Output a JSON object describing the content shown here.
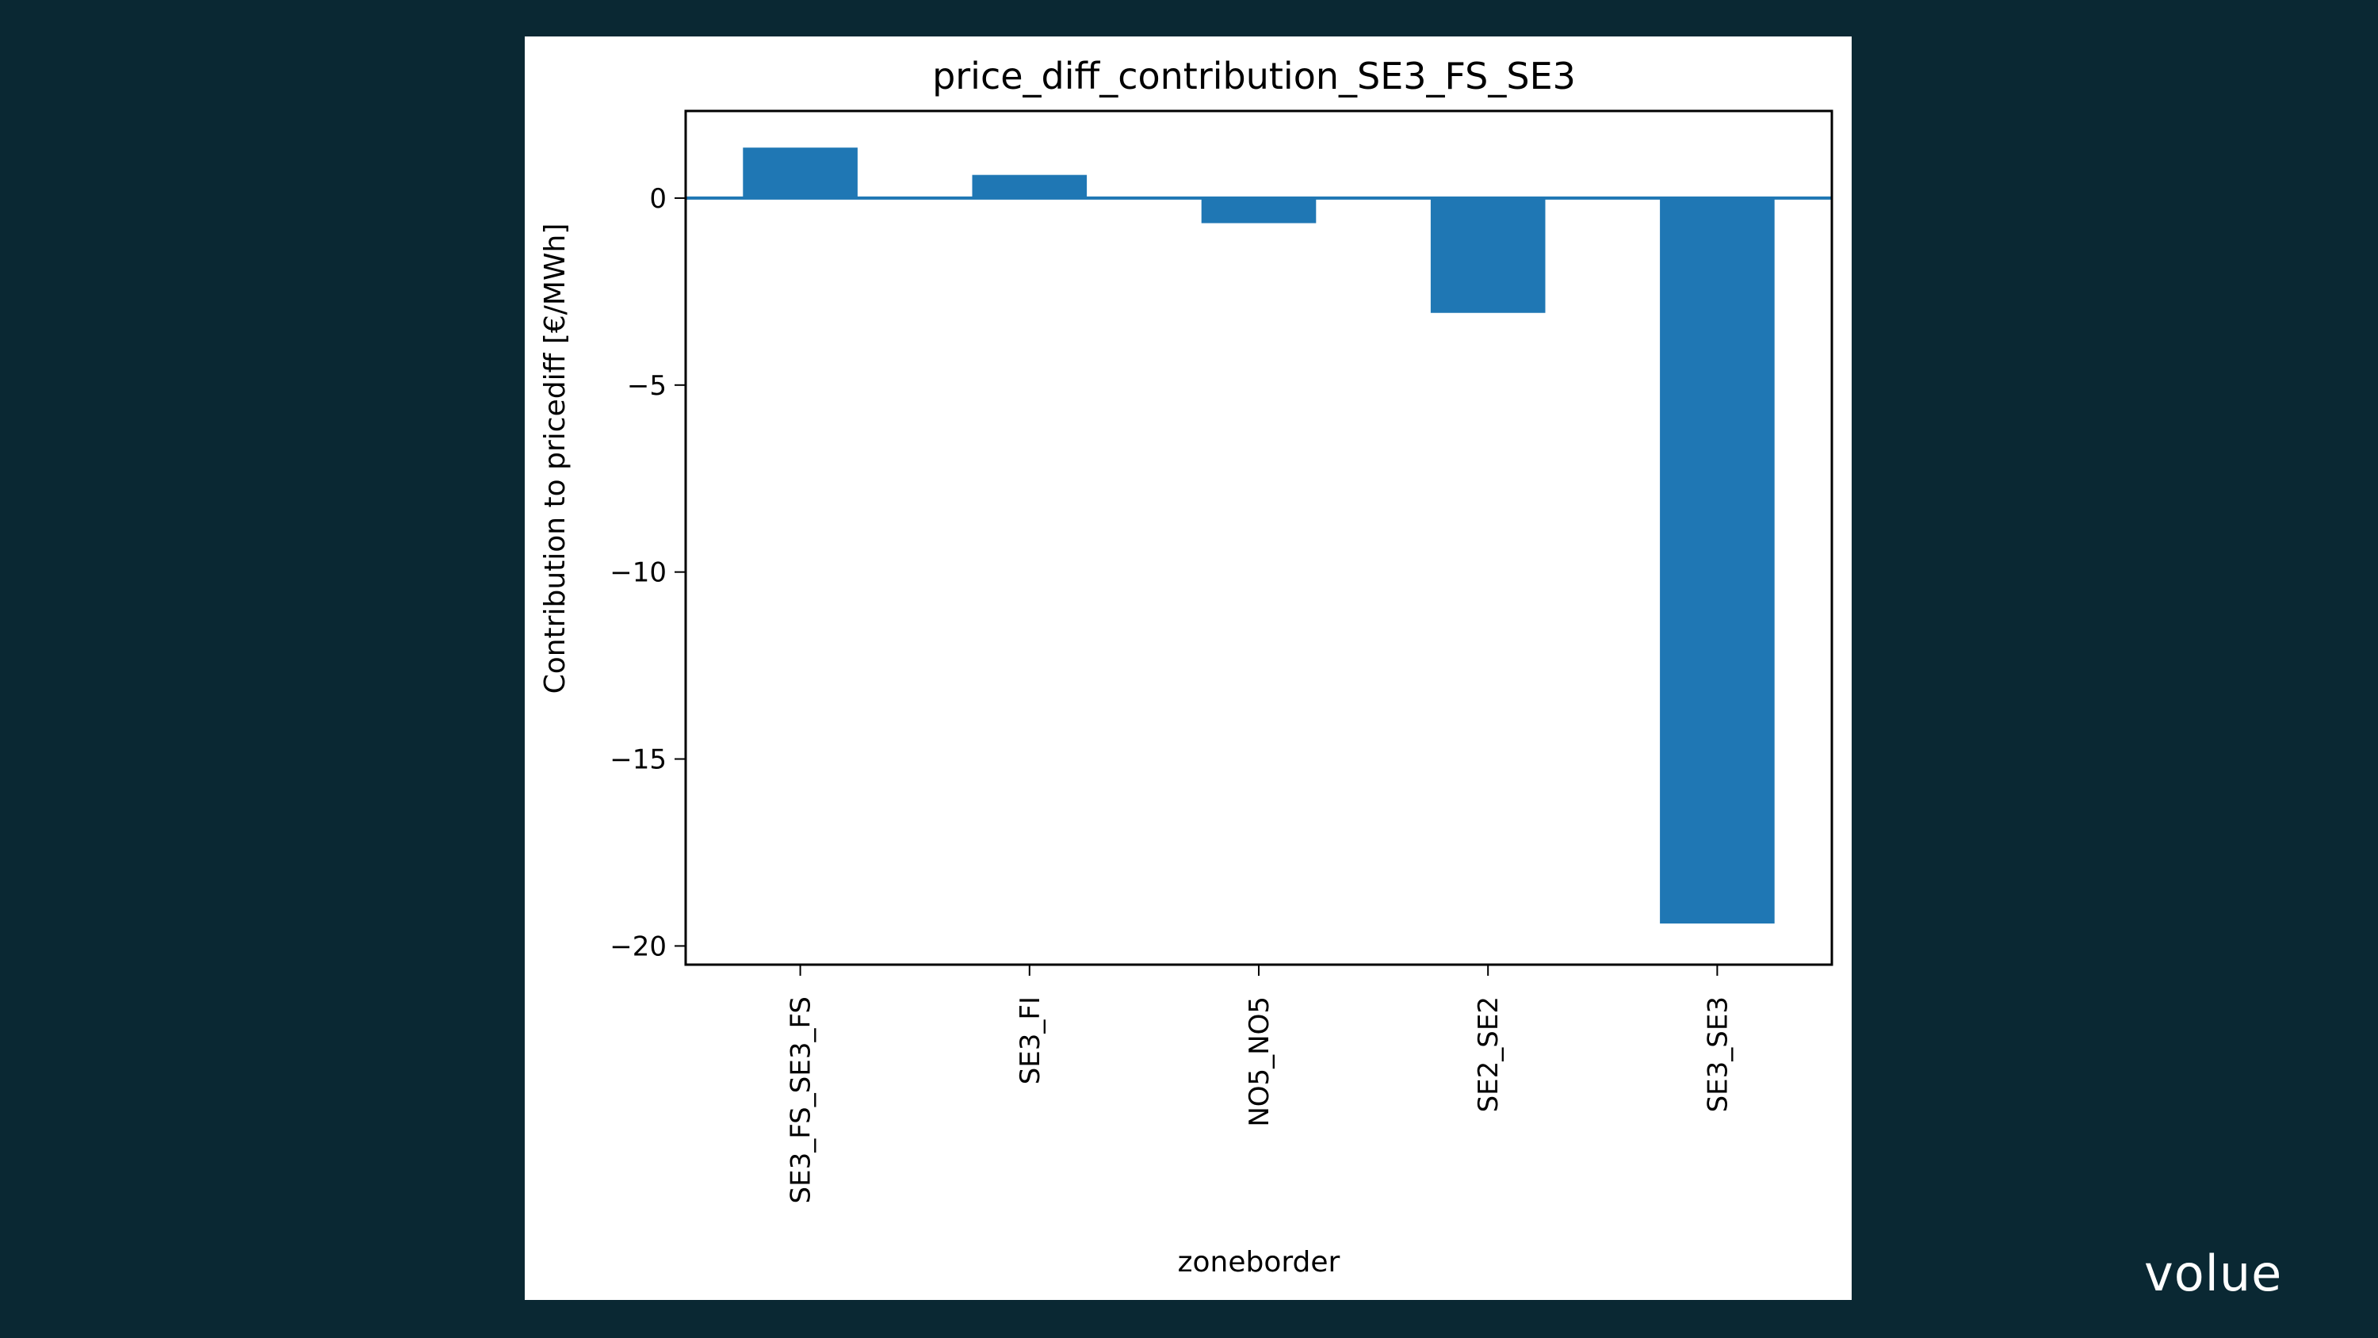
{
  "brand": {
    "logo_text": "volue"
  },
  "chart_data": {
    "type": "bar",
    "title": "price_diff_contribution_SE3_FS_SE3",
    "xlabel": "zoneborder",
    "ylabel": "Contribution to pricediff [€/MWh]",
    "categories": [
      "SE3_FS_SE3_FS",
      "SE3_FI",
      "NO5_NO5",
      "SE2_SE2",
      "SE3_SE3"
    ],
    "values": [
      1.35,
      0.62,
      -0.67,
      -3.07,
      -19.4
    ],
    "ylim": [
      -20.5,
      2.33
    ],
    "yticks": [
      0,
      -5,
      -10,
      -15,
      -20
    ],
    "ytick_labels": [
      "0",
      "−5",
      "−10",
      "−15",
      "−20"
    ],
    "zero_line": true,
    "grid": false,
    "bar_color": "#1f77b4"
  }
}
